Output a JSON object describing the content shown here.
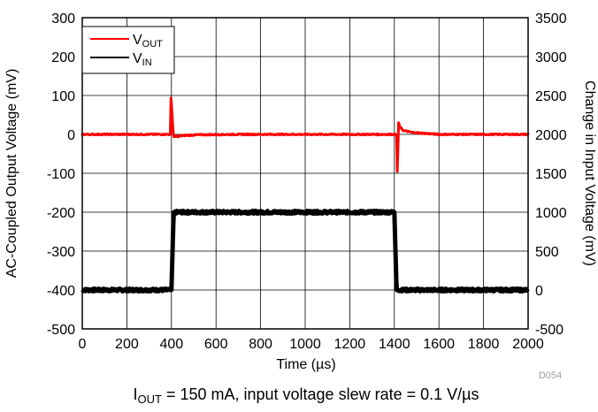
{
  "chart_data": {
    "type": "line",
    "xlabel": "Time (µs)",
    "ylabel_left": "AC-Coupled Output Voltage (mV)",
    "ylabel_right": "Change in Input Voltage (mV)",
    "figure_code": "D054",
    "caption": {
      "i_label": "I",
      "i_sub": "OUT",
      "rest": " = 150 mA, input voltage slew rate = 0.1 V/µs"
    },
    "xlim": [
      0,
      2000
    ],
    "ylim_left": [
      -500,
      300
    ],
    "ylim_right": [
      -500,
      3500
    ],
    "x_ticks": [
      0,
      200,
      400,
      600,
      800,
      1000,
      1200,
      1400,
      1600,
      1800,
      2000
    ],
    "y_ticks_left": [
      300,
      200,
      100,
      0,
      -100,
      -200,
      -300,
      -400,
      -500
    ],
    "y_ticks_right": [
      3500,
      3000,
      2500,
      2000,
      1500,
      1000,
      500,
      0,
      -500
    ],
    "grid": true,
    "legend_position": "top-left",
    "series": [
      {
        "name": "V_OUT",
        "label_main": "V",
        "label_sub": "OUT",
        "axis": "left",
        "color": "#ff0000",
        "points": [
          [
            0,
            0
          ],
          [
            395,
            0
          ],
          [
            398,
            95
          ],
          [
            402,
            60
          ],
          [
            406,
            20
          ],
          [
            410,
            -5
          ],
          [
            420,
            -6
          ],
          [
            450,
            -3
          ],
          [
            520,
            -1
          ],
          [
            700,
            0
          ],
          [
            1410,
            0
          ],
          [
            1413,
            -95
          ],
          [
            1416,
            -40
          ],
          [
            1419,
            30
          ],
          [
            1423,
            20
          ],
          [
            1440,
            10
          ],
          [
            1480,
            5
          ],
          [
            1600,
            0
          ],
          [
            2000,
            0
          ]
        ]
      },
      {
        "name": "V_IN",
        "label_main": "V",
        "label_sub": "IN",
        "axis": "right",
        "color": "#000000",
        "points": [
          [
            0,
            0
          ],
          [
            400,
            0
          ],
          [
            405,
            500
          ],
          [
            410,
            1000
          ],
          [
            1400,
            1000
          ],
          [
            1405,
            500
          ],
          [
            1410,
            0
          ],
          [
            2000,
            0
          ]
        ]
      }
    ]
  }
}
